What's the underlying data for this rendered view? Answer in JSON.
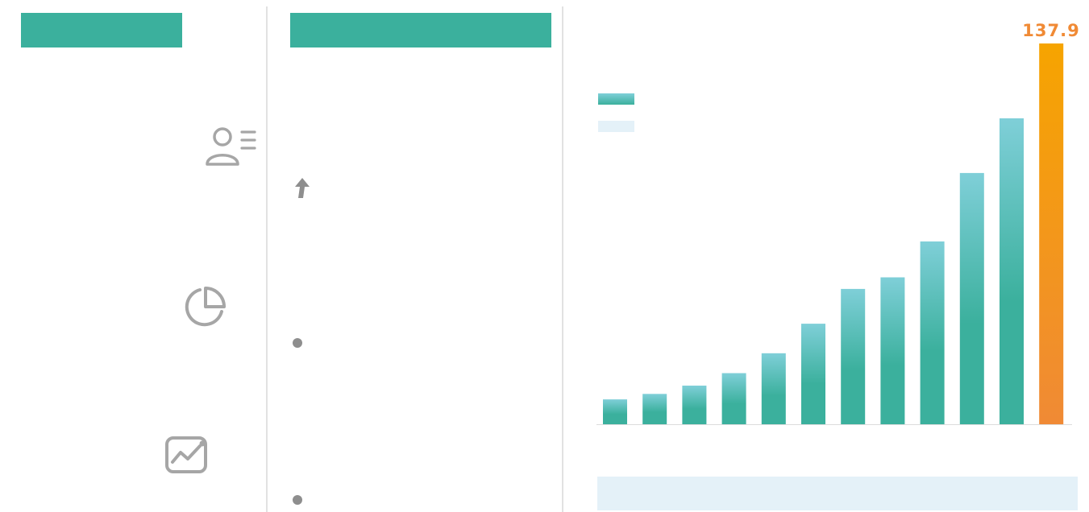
{
  "theme": {
    "accent": "#3bb09d",
    "bar_light": "#7fcfd8",
    "highlight_top": "#f6a400",
    "highlight_bottom": "#f08a35",
    "icon_gray": "#a6a6a6",
    "panel_light": "#e4f1f8"
  },
  "left_panel": {
    "icons": [
      "user-list-icon",
      "pie-chart-icon",
      "trend-chart-icon"
    ]
  },
  "middle_panel": {
    "icons": [
      "up-arrow-icon",
      "bullet-icon",
      "bullet-icon"
    ]
  },
  "chart_data": {
    "type": "bar",
    "categories": [
      "",
      "",
      "",
      "",
      "",
      "",
      "",
      "",
      "",
      "",
      "",
      ""
    ],
    "values": [
      9.0,
      11.0,
      14.0,
      18.5,
      25.7,
      36.4,
      49.0,
      53.2,
      66.2,
      91.0,
      110.8,
      137.9
    ],
    "highlight_index": 11,
    "data_labels": [
      null,
      null,
      null,
      null,
      null,
      null,
      null,
      null,
      null,
      null,
      null,
      "137.9"
    ],
    "ylim": [
      0,
      137.9
    ],
    "grid": false,
    "legend_entries": [
      "",
      ""
    ]
  }
}
